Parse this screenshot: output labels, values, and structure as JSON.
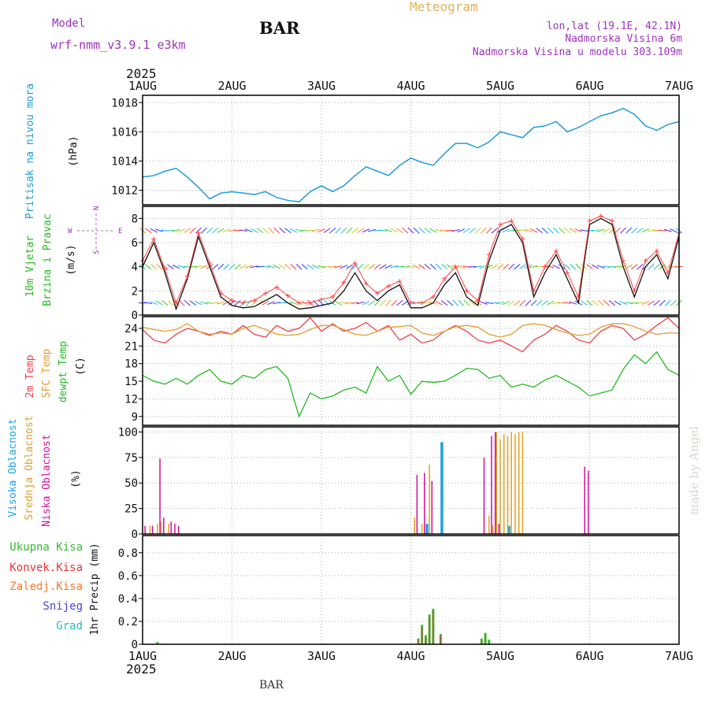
{
  "header": {
    "model_label": "Model",
    "model_name": "wrf-nmm_v3.9.1 e3km",
    "station": "BAR",
    "meteogram": "Meteogram",
    "lonlat": "lon,lat (19.1E, 42.1N)",
    "altitude": "Nadmorska Visina 6m",
    "model_altitude": "Nadmorska Visina u modelu 303.109m",
    "footer_station": "BAR",
    "credit": "made by Angel"
  },
  "colors": {
    "pressure": "#1e9bdc",
    "temp2m": "#e8404a",
    "sfc_temp": "#dca030",
    "dewpoint": "#22bb22",
    "wind_gust": "#ff4444",
    "high_cloud": "#1ea0e0",
    "mid_cloud": "#e0a020",
    "low_cloud": "#cc1199",
    "total_precip": "#33bb33",
    "convective": "#ee3333",
    "freezing": "#ff7722",
    "snow": "#4444dd",
    "hail": "#22bbbb",
    "purple_text": "#a030c0",
    "orange_text": "#e0b060"
  },
  "chart_data": {
    "type": "line",
    "x_axis": {
      "year": "2025",
      "ticks": [
        "1AUG",
        "2AUG",
        "3AUG",
        "4AUG",
        "5AUG",
        "6AUG",
        "7AUG"
      ],
      "range_hours": [
        0,
        144
      ]
    },
    "panels": [
      {
        "id": "pressure",
        "ylabel": "(hPa)",
        "labels": [
          "Pritisak na nivou mora"
        ],
        "ylim": [
          1011,
          1018.5
        ],
        "yticks": [
          1012,
          1014,
          1016,
          1018
        ],
        "series": [
          {
            "name": "Pritisak na nivou mora",
            "x": [
              0,
              3,
              6,
              9,
              12,
              15,
              18,
              21,
              24,
              27,
              30,
              33,
              36,
              39,
              42,
              45,
              48,
              51,
              54,
              57,
              60,
              63,
              66,
              69,
              72,
              75,
              78,
              81,
              84,
              87,
              90,
              93,
              96,
              99,
              102,
              105,
              108,
              111,
              114,
              117,
              120,
              123,
              126,
              129,
              132,
              135,
              138,
              141,
              144
            ],
            "values": [
              1012.9,
              1013.0,
              1013.3,
              1013.5,
              1012.9,
              1012.2,
              1011.4,
              1011.8,
              1011.9,
              1011.8,
              1011.7,
              1011.9,
              1011.5,
              1011.3,
              1011.2,
              1011.9,
              1012.3,
              1011.9,
              1012.3,
              1013.0,
              1013.6,
              1013.3,
              1013.0,
              1013.7,
              1014.2,
              1013.9,
              1013.7,
              1014.5,
              1015.2,
              1015.2,
              1014.9,
              1015.3,
              1016.0,
              1015.8,
              1015.6,
              1016.3,
              1016.4,
              1016.7,
              1016.0,
              1016.3,
              1016.7,
              1017.1,
              1017.3,
              1017.6,
              1017.2,
              1016.4,
              1016.1,
              1016.5,
              1016.7
            ]
          }
        ]
      },
      {
        "id": "wind",
        "ylabel": "(m/s)",
        "labels": [
          "10m Vjetar",
          "Brzina i Pravac"
        ],
        "compass": [
          "W",
          "E",
          "N",
          "S"
        ],
        "ylim": [
          0,
          9
        ],
        "yticks": [
          0,
          2,
          4,
          6,
          8
        ],
        "series": [
          {
            "name": "speed",
            "x": [
              0,
              3,
              6,
              9,
              12,
              15,
              18,
              21,
              24,
              27,
              30,
              33,
              36,
              39,
              42,
              45,
              48,
              51,
              54,
              57,
              60,
              63,
              66,
              69,
              72,
              75,
              78,
              81,
              84,
              87,
              90,
              93,
              96,
              99,
              102,
              105,
              108,
              111,
              114,
              117,
              120,
              123,
              126,
              129,
              132,
              135,
              138,
              141,
              144
            ],
            "values": [
              4.0,
              6.0,
              3.5,
              0.5,
              3.0,
              6.5,
              4.0,
              1.5,
              0.8,
              0.6,
              0.7,
              1.2,
              1.7,
              1.0,
              0.5,
              0.6,
              0.8,
              1.0,
              2.0,
              3.5,
              2.0,
              1.2,
              2.0,
              2.5,
              0.6,
              0.6,
              1.0,
              2.5,
              3.5,
              1.5,
              0.8,
              4.5,
              7.0,
              7.5,
              6.0,
              1.5,
              3.5,
              5.0,
              3.0,
              1.0,
              7.5,
              8.0,
              7.5,
              4.0,
              1.5,
              4.0,
              5.0,
              3.0,
              6.5
            ]
          },
          {
            "name": "gust",
            "x": [
              0,
              3,
              6,
              9,
              12,
              15,
              18,
              21,
              24,
              27,
              30,
              33,
              36,
              39,
              42,
              45,
              48,
              51,
              54,
              57,
              60,
              63,
              66,
              69,
              72,
              75,
              78,
              81,
              84,
              87,
              90,
              93,
              96,
              99,
              102,
              105,
              108,
              111,
              114,
              117,
              120,
              123,
              126,
              129,
              132,
              135,
              138,
              141,
              144
            ],
            "values": [
              4.5,
              6.3,
              3.8,
              1.0,
              3.2,
              6.8,
              4.3,
              1.8,
              1.2,
              1.0,
              1.2,
              1.8,
              2.3,
              1.6,
              1.0,
              1.0,
              1.3,
              1.5,
              2.7,
              4.3,
              2.6,
              1.8,
              2.4,
              2.8,
              1.0,
              1.0,
              1.5,
              3.0,
              4.0,
              2.0,
              1.2,
              5.0,
              7.5,
              7.8,
              6.3,
              2.0,
              4.0,
              5.3,
              3.5,
              1.5,
              7.8,
              8.2,
              7.8,
              4.5,
              2.0,
              4.5,
              5.3,
              3.5,
              6.8
            ]
          }
        ]
      },
      {
        "id": "temp",
        "ylabel": "(C)",
        "labels": [
          "2m Temp",
          "SFC Temp",
          "dewpt Temp"
        ],
        "ylim": [
          7.5,
          26
        ],
        "yticks": [
          9,
          12,
          15,
          18,
          21,
          24
        ],
        "series": [
          {
            "name": "2m Temp",
            "x": [
              0,
              3,
              6,
              9,
              12,
              15,
              18,
              21,
              24,
              27,
              30,
              33,
              36,
              39,
              42,
              45,
              48,
              51,
              54,
              57,
              60,
              63,
              66,
              69,
              72,
              75,
              78,
              81,
              84,
              87,
              90,
              93,
              96,
              99,
              102,
              105,
              108,
              111,
              114,
              117,
              120,
              123,
              126,
              129,
              132,
              135,
              138,
              141,
              144
            ],
            "values": [
              23.8,
              22,
              21.5,
              23,
              24,
              23.5,
              22.8,
              23.5,
              23,
              24.5,
              23,
              22.5,
              24.5,
              23.5,
              24,
              25.8,
              23.5,
              24.8,
              23.5,
              24,
              25,
              23.5,
              24.5,
              22,
              23,
              21.5,
              22,
              23.5,
              24.5,
              23.5,
              22,
              21.5,
              22,
              21,
              20,
              22,
              23,
              24.5,
              23.5,
              22,
              21.5,
              23.5,
              24.5,
              24,
              22,
              23,
              24.5,
              25.8,
              24
            ]
          },
          {
            "name": "SFC Temp",
            "x": [
              0,
              3,
              6,
              9,
              12,
              15,
              18,
              21,
              24,
              27,
              30,
              33,
              36,
              39,
              42,
              45,
              48,
              51,
              54,
              57,
              60,
              63,
              66,
              69,
              72,
              75,
              78,
              81,
              84,
              87,
              90,
              93,
              96,
              99,
              102,
              105,
              108,
              111,
              114,
              117,
              120,
              123,
              126,
              129,
              132,
              135,
              138,
              141,
              144
            ],
            "values": [
              24.2,
              23.8,
              23.5,
              23.8,
              24.8,
              23.5,
              23,
              23.2,
              23,
              24,
              24.5,
              23.8,
              23,
              22.8,
              23,
              23.8,
              24.5,
              24.5,
              23.8,
              23,
              22.8,
              23.5,
              24.2,
              24.3,
              24.5,
              23.2,
              22.8,
              23.5,
              24.3,
              24.5,
              24.2,
              23,
              22.5,
              23,
              24.5,
              24.8,
              24.5,
              23.8,
              23.2,
              22.8,
              23,
              24.2,
              24.8,
              24.8,
              24.3,
              23.5,
              23,
              23.2,
              23.2
            ]
          },
          {
            "name": "dewpt Temp",
            "x": [
              0,
              3,
              6,
              9,
              12,
              15,
              18,
              21,
              24,
              27,
              30,
              33,
              36,
              39,
              42,
              45,
              48,
              51,
              54,
              57,
              60,
              63,
              66,
              69,
              72,
              75,
              78,
              81,
              84,
              87,
              90,
              93,
              96,
              99,
              102,
              105,
              108,
              111,
              114,
              117,
              120,
              123,
              126,
              129,
              132,
              135,
              138,
              141,
              144
            ],
            "values": [
              16,
              15,
              14.5,
              15.5,
              14.5,
              16,
              17,
              15,
              14.5,
              16,
              15.5,
              17,
              17.5,
              15.5,
              9,
              13,
              12,
              12.5,
              13.5,
              14,
              13,
              17.5,
              15,
              16,
              12.8,
              15,
              14.8,
              15,
              16,
              17.2,
              17,
              15.5,
              16,
              14,
              14.5,
              14,
              15.2,
              16,
              15,
              14,
              12.5,
              13,
              13.5,
              17,
              19.5,
              18,
              20,
              17,
              16
            ]
          }
        ]
      },
      {
        "id": "cloud",
        "ylabel": "(%)",
        "labels": [
          "Visoka Oblacnost",
          "Srednja Oblacnost",
          "Niska Oblacnost"
        ],
        "ylim": [
          0,
          105
        ],
        "yticks": [
          0,
          25,
          50,
          75,
          100
        ],
        "series": [
          {
            "name": "Visoka Oblacnost",
            "x": [
              76,
              80,
              98
            ],
            "values": [
              10,
              90,
              8
            ]
          },
          {
            "name": "Srednja Oblacnost",
            "x": [
              2,
              4,
              5,
              7,
              73,
              75,
              77,
              93,
              94,
              95,
              96,
              97,
              98,
              99,
              100,
              101,
              102
            ],
            "values": [
              8,
              10,
              12,
              10,
              16,
              10,
              68,
              18,
              8,
              100,
              93,
              98,
              96,
              100,
              98,
              100,
              100
            ]
          },
          {
            "name": "Niska Oblacnost",
            "x": [
              1,
              3,
              5,
              6,
              8,
              9,
              10,
              74,
              76,
              78,
              92,
              94,
              95,
              96,
              119,
              120
            ],
            "values": [
              8,
              8,
              74,
              16,
              12,
              10,
              8,
              58,
              60,
              52,
              75,
              96,
              100,
              10,
              66,
              62
            ]
          }
        ]
      },
      {
        "id": "precip",
        "ylabel": "1hr Precip (mm)",
        "labels": [
          "Ukupna Kisa",
          "Konvek.Kisa",
          "Zaledj.Kisa",
          "Snijeg",
          "Grad"
        ],
        "ylim": [
          0,
          0.95
        ],
        "yticks": [
          0,
          0.2,
          0.4,
          0.6,
          0.8
        ],
        "series": [
          {
            "name": "Ukupna Kisa",
            "x": [
              4,
              74,
              75,
              76,
              77,
              78,
              80,
              91,
              92,
              93
            ],
            "values": [
              0.02,
              0.05,
              0.17,
              0.08,
              0.26,
              0.31,
              0.09,
              0.05,
              0.1,
              0.04
            ]
          },
          {
            "name": "Konvek.Kisa",
            "x": [
              74,
              75,
              76,
              77,
              78,
              80,
              91,
              92
            ],
            "values": [
              0.04,
              0.15,
              0.06,
              0.24,
              0.29,
              0.08,
              0.03,
              0.06
            ]
          }
        ]
      }
    ]
  }
}
